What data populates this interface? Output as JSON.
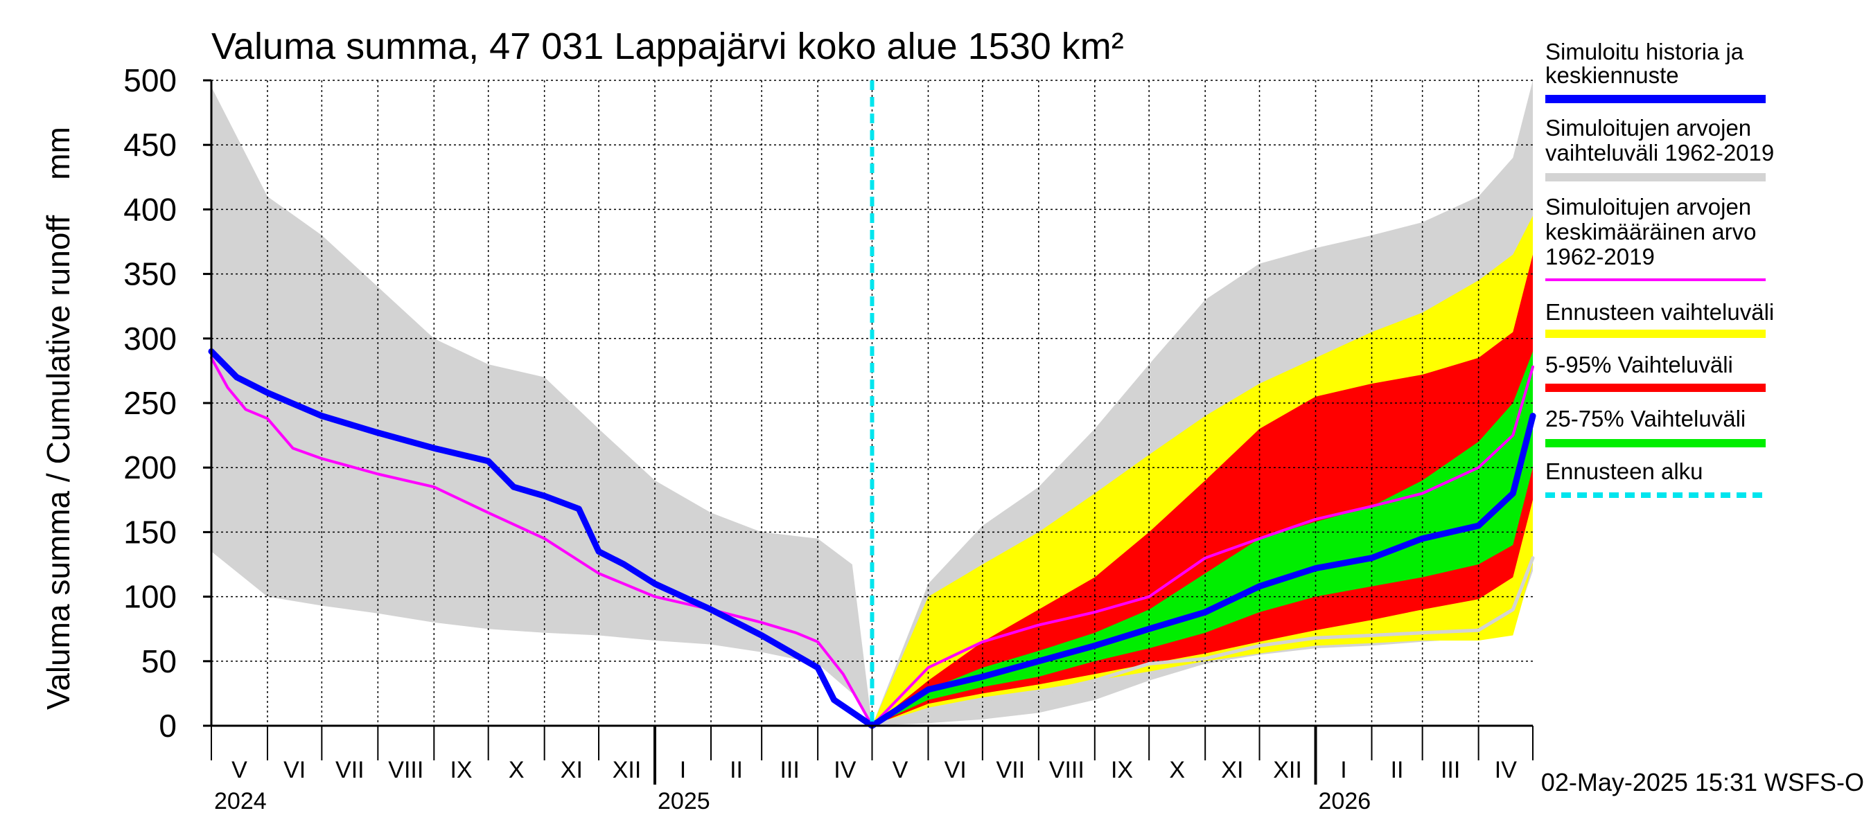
{
  "chart_data": {
    "type": "area",
    "title": "Valuma summa, 47 031 Lappajärvi koko alue 1530 km²",
    "ylabel": "Valuma summa / Cumulative runoff    mm",
    "ylim": [
      0,
      500
    ],
    "yticks": [
      0,
      50,
      100,
      150,
      200,
      250,
      300,
      350,
      400,
      450,
      500
    ],
    "grid": true,
    "legend_position": "right",
    "x_start": "2024-05-01",
    "x_end": "2026-05-01",
    "forecast_start": "2025-05-01",
    "month_labels": [
      "V",
      "VI",
      "VII",
      "VIII",
      "IX",
      "X",
      "XI",
      "XII",
      "I",
      "II",
      "III",
      "IV",
      "V",
      "VI",
      "VII",
      "VIII",
      "IX",
      "X",
      "XI",
      "XII",
      "I",
      "II",
      "III",
      "IV"
    ],
    "year_labels": [
      {
        "label": "2024",
        "date": "2024-05-01"
      },
      {
        "label": "2025",
        "date": "2025-01-01"
      },
      {
        "label": "2026",
        "date": "2026-01-01"
      }
    ],
    "timestamp": "02-May-2025 15:31 WSFS-O",
    "legend": [
      {
        "label": "Simuloitu historia ja keskiennuste",
        "color": "#0000ff",
        "style": "solid"
      },
      {
        "label": "Simuloitujen arvojen vaihteluväli 1962-2019",
        "color": "#d3d3d3",
        "style": "solid"
      },
      {
        "label": "Simuloitujen arvojen keskimääräinen arvo 1962-2019",
        "color": "#ff00ff",
        "style": "solid"
      },
      {
        "label": "Ennusteen vaihteluväli",
        "color": "#ffff00",
        "style": "solid"
      },
      {
        "label": "5-95% Vaihteluväli",
        "color": "#ff0000",
        "style": "solid"
      },
      {
        "label": "25-75% Vaihteluväli",
        "color": "#00ee00",
        "style": "solid"
      },
      {
        "label": "Ennusteen alku",
        "color": "#00e5ee",
        "style": "dashed"
      }
    ],
    "series": [
      {
        "name": "Simuloitujen arvojen vaihteluväli 1962-2019",
        "kind": "band",
        "color": "#d3d3d3",
        "x": [
          "2024-05-01",
          "2024-06-01",
          "2024-07-01",
          "2024-08-01",
          "2024-09-01",
          "2024-10-01",
          "2024-11-01",
          "2024-12-01",
          "2025-01-01",
          "2025-02-01",
          "2025-03-01",
          "2025-04-01",
          "2025-04-20",
          "2025-05-01",
          "2025-06-01",
          "2025-07-01",
          "2025-08-01",
          "2025-09-01",
          "2025-10-01",
          "2025-11-01",
          "2025-12-01",
          "2026-01-01",
          "2026-02-01",
          "2026-03-01",
          "2026-04-01",
          "2026-04-20",
          "2026-05-01"
        ],
        "low": [
          135,
          100,
          93,
          87,
          80,
          75,
          72,
          70,
          66,
          63,
          57,
          48,
          25,
          0,
          2,
          5,
          10,
          20,
          35,
          48,
          55,
          60,
          62,
          65,
          68,
          75,
          120
        ],
        "high": [
          495,
          410,
          380,
          340,
          300,
          280,
          270,
          230,
          190,
          165,
          150,
          145,
          125,
          0,
          110,
          155,
          185,
          230,
          280,
          330,
          358,
          370,
          380,
          390,
          410,
          440,
          500
        ]
      },
      {
        "name": "Ennusteen vaihteluväli",
        "kind": "band",
        "color": "#ffff00",
        "x": [
          "2025-05-01",
          "2025-06-01",
          "2025-07-01",
          "2025-08-01",
          "2025-09-01",
          "2025-10-01",
          "2025-11-01",
          "2025-12-01",
          "2026-01-01",
          "2026-02-01",
          "2026-03-01",
          "2026-04-01",
          "2026-04-20",
          "2026-05-01"
        ],
        "low": [
          0,
          14,
          22,
          28,
          35,
          42,
          50,
          56,
          62,
          64,
          66,
          66,
          70,
          125
        ],
        "high": [
          0,
          100,
          125,
          150,
          180,
          210,
          240,
          265,
          285,
          305,
          320,
          345,
          365,
          395
        ]
      },
      {
        "name": "5-95% Vaihteluväli",
        "kind": "band",
        "color": "#ff0000",
        "x": [
          "2025-05-01",
          "2025-06-01",
          "2025-07-01",
          "2025-08-01",
          "2025-09-01",
          "2025-10-01",
          "2025-11-01",
          "2025-12-01",
          "2026-01-01",
          "2026-02-01",
          "2026-03-01",
          "2026-04-01",
          "2026-04-20",
          "2026-05-01"
        ],
        "low": [
          0,
          17,
          25,
          32,
          40,
          48,
          56,
          65,
          74,
          82,
          90,
          98,
          115,
          175
        ],
        "high": [
          0,
          35,
          65,
          90,
          115,
          150,
          190,
          230,
          255,
          265,
          272,
          285,
          305,
          365
        ]
      },
      {
        "name": "25-75% Vaihteluväli",
        "kind": "band",
        "color": "#00ee00",
        "x": [
          "2025-05-01",
          "2025-06-01",
          "2025-07-01",
          "2025-08-01",
          "2025-09-01",
          "2025-10-01",
          "2025-11-01",
          "2025-12-01",
          "2026-01-01",
          "2026-02-01",
          "2026-03-01",
          "2026-04-01",
          "2026-04-20",
          "2026-05-01"
        ],
        "low": [
          0,
          20,
          30,
          38,
          50,
          60,
          72,
          88,
          100,
          108,
          115,
          125,
          140,
          200
        ],
        "high": [
          0,
          28,
          45,
          58,
          72,
          90,
          118,
          145,
          158,
          170,
          190,
          220,
          250,
          290
        ]
      },
      {
        "name": "Simuloitujen arvojen keskimääräinen arvo 1962-2019",
        "kind": "line",
        "color": "#ff00ff",
        "x": [
          "2024-05-01",
          "2024-05-10",
          "2024-05-20",
          "2024-06-01",
          "2024-06-15",
          "2024-07-01",
          "2024-08-01",
          "2024-09-01",
          "2024-10-01",
          "2024-11-01",
          "2024-12-01",
          "2025-01-01",
          "2025-02-01",
          "2025-03-01",
          "2025-03-20",
          "2025-04-01",
          "2025-04-15",
          "2025-05-01",
          "2025-06-01",
          "2025-07-01",
          "2025-08-01",
          "2025-09-01",
          "2025-10-01",
          "2025-11-01",
          "2025-12-01",
          "2026-01-01",
          "2026-02-01",
          "2026-03-01",
          "2026-04-01",
          "2026-04-20",
          "2026-05-01"
        ],
        "y": [
          285,
          262,
          245,
          238,
          215,
          207,
          195,
          185,
          165,
          145,
          118,
          100,
          90,
          80,
          72,
          65,
          40,
          0,
          45,
          65,
          78,
          88,
          100,
          130,
          145,
          160,
          170,
          180,
          200,
          225,
          278
        ]
      },
      {
        "name": "Simuloitu historia ja keskiennuste",
        "kind": "line",
        "color": "#0000ff",
        "x": [
          "2024-05-01",
          "2024-05-15",
          "2024-06-01",
          "2024-07-01",
          "2024-08-01",
          "2024-09-01",
          "2024-10-01",
          "2024-10-15",
          "2024-11-01",
          "2024-11-20",
          "2024-12-01",
          "2024-12-15",
          "2025-01-01",
          "2025-02-01",
          "2025-03-01",
          "2025-04-01",
          "2025-04-10",
          "2025-05-01",
          "2025-06-01",
          "2025-07-01",
          "2025-08-01",
          "2025-09-01",
          "2025-10-01",
          "2025-11-01",
          "2025-12-01",
          "2026-01-01",
          "2026-02-01",
          "2026-03-01",
          "2026-04-01",
          "2026-04-20",
          "2026-05-01"
        ],
        "y": [
          290,
          270,
          258,
          240,
          227,
          215,
          205,
          185,
          178,
          168,
          135,
          125,
          110,
          90,
          70,
          45,
          20,
          0,
          28,
          38,
          50,
          62,
          75,
          88,
          108,
          122,
          130,
          145,
          155,
          180,
          240
        ]
      },
      {
        "name": "Simuloitujen arvojen vaihteluväli 1962-2019 (alaraja)",
        "kind": "line",
        "color": "#d3d3d3",
        "x": [
          "2025-05-01",
          "2025-06-01",
          "2025-07-01",
          "2025-08-01",
          "2025-09-01",
          "2025-10-01",
          "2025-11-01",
          "2025-12-01",
          "2026-01-01",
          "2026-02-01",
          "2026-03-01",
          "2026-04-01",
          "2026-04-20",
          "2026-05-01"
        ],
        "y": [
          0,
          12,
          20,
          25,
          35,
          48,
          52,
          62,
          68,
          70,
          72,
          74,
          90,
          130
        ]
      }
    ]
  }
}
